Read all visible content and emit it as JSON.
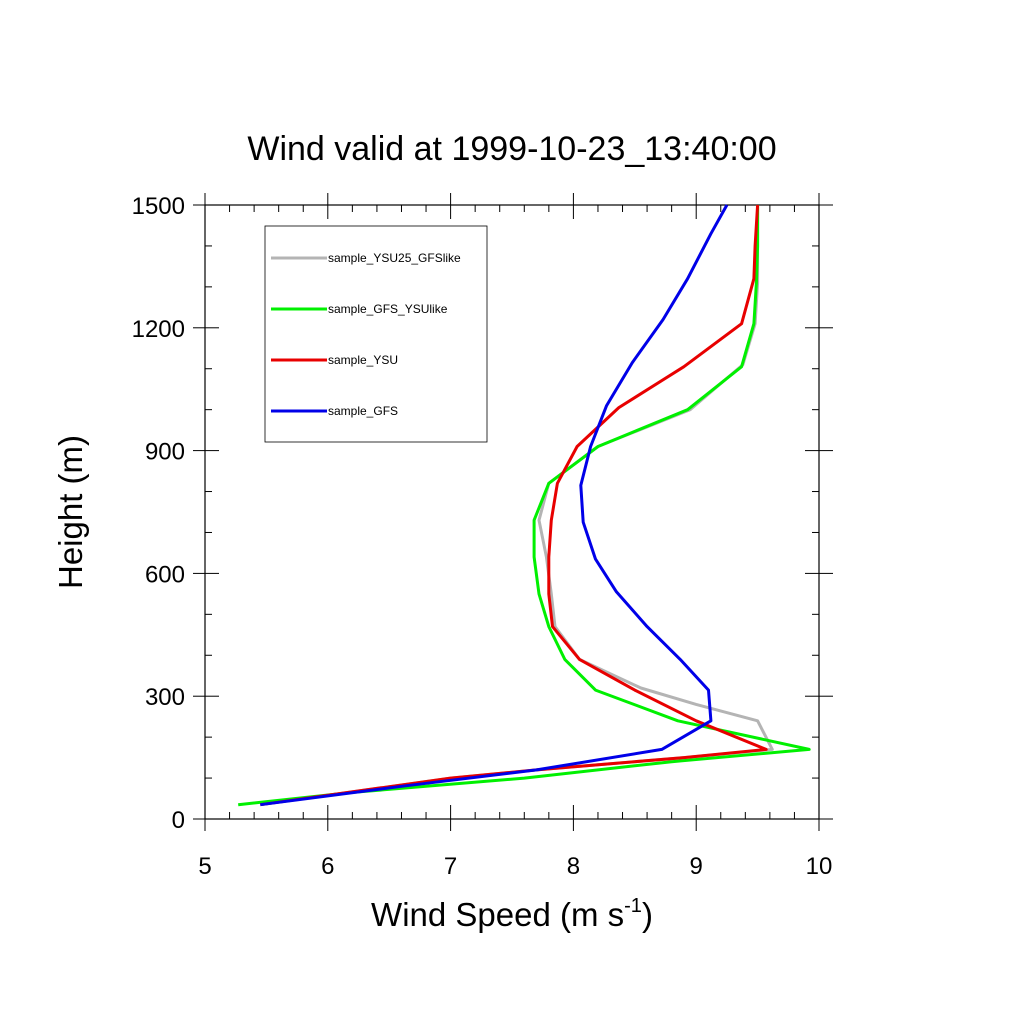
{
  "chart_data": {
    "type": "line",
    "title": "Wind valid at 1999-10-23_13:40:00",
    "xlabel": "Wind Speed (m s",
    "xlabel_superscript": "-1",
    "xlabel_suffix": ")",
    "ylabel": "Height (m)",
    "xlim": [
      5,
      10
    ],
    "ylim": [
      0,
      1500
    ],
    "xticks": [
      5,
      6,
      7,
      8,
      9,
      10
    ],
    "yticks": [
      0,
      300,
      600,
      900,
      1200,
      1500
    ],
    "xtick_labels": [
      "5",
      "6",
      "7",
      "8",
      "9",
      "10"
    ],
    "ytick_labels": [
      "0",
      "300",
      "600",
      "900",
      "1200",
      "1500"
    ],
    "legend_position": "top-left",
    "series": [
      {
        "name": "sample_YSU25_GFSlike",
        "color": "#b4b4b4",
        "points": [
          [
            5.45,
            35
          ],
          [
            7.0,
            100
          ],
          [
            7.7,
            120
          ],
          [
            8.9,
            150
          ],
          [
            9.62,
            170
          ],
          [
            9.5,
            240
          ],
          [
            9.0,
            280
          ],
          [
            8.55,
            320
          ],
          [
            8.05,
            390
          ],
          [
            7.85,
            470
          ],
          [
            7.82,
            550
          ],
          [
            7.78,
            640
          ],
          [
            7.72,
            730
          ],
          [
            7.8,
            820
          ],
          [
            8.2,
            910
          ],
          [
            8.95,
            1000
          ],
          [
            9.38,
            1110
          ],
          [
            9.48,
            1210
          ],
          [
            9.5,
            1310
          ],
          [
            9.5,
            1400
          ],
          [
            9.5,
            1500
          ]
        ]
      },
      {
        "name": "sample_GFS_YSUlike",
        "color": "#00f000",
        "points": [
          [
            5.27,
            35
          ],
          [
            6.2,
            65
          ],
          [
            7.6,
            100
          ],
          [
            8.8,
            140
          ],
          [
            9.92,
            170
          ],
          [
            8.85,
            240
          ],
          [
            8.18,
            315
          ],
          [
            7.93,
            390
          ],
          [
            7.8,
            470
          ],
          [
            7.72,
            550
          ],
          [
            7.68,
            640
          ],
          [
            7.68,
            730
          ],
          [
            7.8,
            820
          ],
          [
            8.2,
            910
          ],
          [
            8.93,
            1000
          ],
          [
            9.37,
            1105
          ],
          [
            9.47,
            1210
          ],
          [
            9.49,
            1310
          ],
          [
            9.5,
            1400
          ],
          [
            9.5,
            1500
          ]
        ]
      },
      {
        "name": "sample_YSU",
        "color": "#e80000",
        "points": [
          [
            5.45,
            35
          ],
          [
            7.0,
            100
          ],
          [
            7.7,
            120
          ],
          [
            8.9,
            150
          ],
          [
            9.57,
            170
          ],
          [
            9.0,
            240
          ],
          [
            8.5,
            315
          ],
          [
            8.05,
            390
          ],
          [
            7.83,
            470
          ],
          [
            7.8,
            550
          ],
          [
            7.8,
            640
          ],
          [
            7.82,
            730
          ],
          [
            7.87,
            820
          ],
          [
            8.03,
            910
          ],
          [
            8.37,
            1005
          ],
          [
            8.9,
            1105
          ],
          [
            9.37,
            1210
          ],
          [
            9.47,
            1320
          ],
          [
            9.48,
            1400
          ],
          [
            9.5,
            1500
          ]
        ]
      },
      {
        "name": "sample_GFS",
        "color": "#0000e8",
        "points": [
          [
            5.45,
            35
          ],
          [
            6.6,
            80
          ],
          [
            7.7,
            120
          ],
          [
            8.72,
            170
          ],
          [
            9.12,
            240
          ],
          [
            9.1,
            315
          ],
          [
            8.87,
            390
          ],
          [
            8.6,
            470
          ],
          [
            8.35,
            555
          ],
          [
            8.18,
            635
          ],
          [
            8.08,
            725
          ],
          [
            8.06,
            815
          ],
          [
            8.14,
            910
          ],
          [
            8.27,
            1010
          ],
          [
            8.48,
            1115
          ],
          [
            8.73,
            1220
          ],
          [
            8.93,
            1320
          ],
          [
            9.12,
            1430
          ],
          [
            9.25,
            1500
          ]
        ]
      }
    ]
  }
}
